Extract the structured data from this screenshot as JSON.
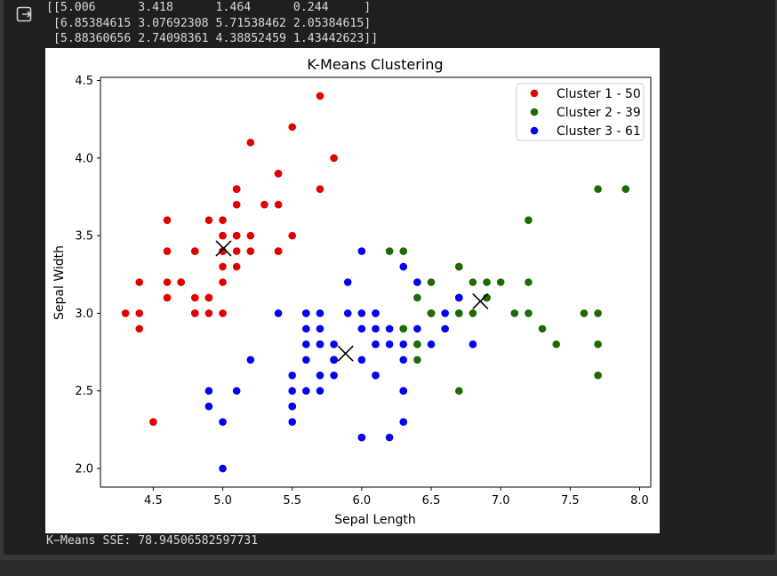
{
  "stdout": {
    "centers_lines": [
      "[[5.006      3.418      1.464      0.244     ]",
      " [6.85384615 3.07692308 5.71538462 2.05384615]",
      " [5.88360656 2.74098361 4.38852459 1.43442623]]"
    ],
    "sse_text": "K−Means SSE: 78.94506582597731"
  },
  "output_icon": "output-exit-icon",
  "colors": {
    "cluster1": "#e00000",
    "cluster2": "#1a6b00",
    "cluster3": "#0000f2",
    "centroid": "#000000"
  },
  "chart_data": {
    "type": "scatter",
    "title": "K-Means Clustering",
    "xlabel": "Sepal Length",
    "ylabel": "Sepal Width",
    "xlim": [
      4.12,
      8.08
    ],
    "ylim": [
      1.88,
      4.52
    ],
    "xticks": [
      "4.5",
      "5.0",
      "5.5",
      "6.0",
      "6.5",
      "7.0",
      "7.5",
      "8.0"
    ],
    "yticks": [
      "2.0",
      "2.5",
      "3.0",
      "3.5",
      "4.0",
      "4.5"
    ],
    "grid": false,
    "legend_position": "top-right",
    "series": [
      {
        "name": "Cluster 1 - 50",
        "color": "#e00000",
        "points": [
          [
            5.1,
            3.5
          ],
          [
            4.9,
            3.0
          ],
          [
            4.7,
            3.2
          ],
          [
            4.6,
            3.1
          ],
          [
            5.0,
            3.6
          ],
          [
            5.4,
            3.9
          ],
          [
            4.6,
            3.4
          ],
          [
            5.0,
            3.4
          ],
          [
            4.4,
            2.9
          ],
          [
            4.9,
            3.1
          ],
          [
            5.4,
            3.7
          ],
          [
            4.8,
            3.4
          ],
          [
            4.8,
            3.0
          ],
          [
            4.3,
            3.0
          ],
          [
            5.8,
            4.0
          ],
          [
            5.7,
            4.4
          ],
          [
            5.4,
            3.9
          ],
          [
            5.1,
            3.5
          ],
          [
            5.7,
            3.8
          ],
          [
            5.1,
            3.8
          ],
          [
            5.4,
            3.4
          ],
          [
            5.1,
            3.7
          ],
          [
            4.6,
            3.6
          ],
          [
            5.1,
            3.3
          ],
          [
            4.8,
            3.4
          ],
          [
            5.0,
            3.0
          ],
          [
            5.0,
            3.4
          ],
          [
            5.2,
            3.5
          ],
          [
            5.2,
            3.4
          ],
          [
            4.7,
            3.2
          ],
          [
            4.8,
            3.1
          ],
          [
            5.4,
            3.4
          ],
          [
            5.2,
            4.1
          ],
          [
            5.5,
            4.2
          ],
          [
            4.9,
            3.1
          ],
          [
            5.0,
            3.2
          ],
          [
            5.5,
            3.5
          ],
          [
            4.9,
            3.6
          ],
          [
            4.4,
            3.0
          ],
          [
            5.1,
            3.4
          ],
          [
            5.0,
            3.5
          ],
          [
            4.5,
            2.3
          ],
          [
            4.4,
            3.2
          ],
          [
            5.0,
            3.5
          ],
          [
            5.1,
            3.8
          ],
          [
            4.8,
            3.0
          ],
          [
            5.1,
            3.8
          ],
          [
            4.6,
            3.2
          ],
          [
            5.3,
            3.7
          ],
          [
            5.0,
            3.3
          ]
        ]
      },
      {
        "name": "Cluster 2 - 39",
        "color": "#1a6b00",
        "points": [
          [
            6.9,
            3.1
          ],
          [
            6.7,
            3.0
          ],
          [
            7.1,
            3.0
          ],
          [
            6.3,
            2.9
          ],
          [
            6.5,
            3.0
          ],
          [
            7.6,
            3.0
          ],
          [
            7.3,
            2.9
          ],
          [
            6.7,
            2.5
          ],
          [
            7.2,
            3.6
          ],
          [
            6.5,
            3.2
          ],
          [
            6.4,
            2.7
          ],
          [
            6.8,
            3.0
          ],
          [
            6.4,
            3.2
          ],
          [
            6.5,
            3.0
          ],
          [
            7.7,
            3.8
          ],
          [
            7.7,
            2.6
          ],
          [
            6.9,
            3.2
          ],
          [
            7.7,
            2.8
          ],
          [
            6.7,
            3.3
          ],
          [
            7.2,
            3.2
          ],
          [
            6.2,
            3.4
          ],
          [
            6.1,
            2.6
          ],
          [
            6.4,
            2.8
          ],
          [
            7.2,
            3.0
          ],
          [
            7.4,
            2.8
          ],
          [
            7.9,
            3.8
          ],
          [
            6.3,
            3.4
          ],
          [
            6.4,
            3.1
          ],
          [
            6.9,
            3.1
          ],
          [
            6.7,
            3.1
          ],
          [
            6.9,
            3.1
          ],
          [
            6.8,
            3.2
          ],
          [
            6.7,
            3.3
          ],
          [
            6.7,
            3.0
          ],
          [
            6.5,
            3.0
          ],
          [
            7.7,
            3.0
          ],
          [
            6.4,
            2.8
          ],
          [
            6.3,
            2.9
          ],
          [
            7.0,
            3.2
          ]
        ]
      },
      {
        "name": "Cluster 3 - 61",
        "color": "#0000f2",
        "points": [
          [
            6.4,
            3.2
          ],
          [
            5.5,
            2.3
          ],
          [
            6.5,
            2.8
          ],
          [
            5.7,
            2.8
          ],
          [
            6.3,
            3.3
          ],
          [
            4.9,
            2.4
          ],
          [
            6.6,
            2.9
          ],
          [
            5.2,
            2.7
          ],
          [
            5.0,
            2.0
          ],
          [
            5.9,
            3.0
          ],
          [
            6.0,
            2.2
          ],
          [
            6.1,
            2.9
          ],
          [
            5.6,
            2.9
          ],
          [
            5.6,
            3.0
          ],
          [
            5.8,
            2.7
          ],
          [
            6.2,
            2.2
          ],
          [
            5.6,
            2.5
          ],
          [
            5.9,
            3.2
          ],
          [
            6.1,
            2.8
          ],
          [
            6.3,
            2.5
          ],
          [
            6.1,
            2.8
          ],
          [
            6.4,
            2.9
          ],
          [
            6.6,
            3.0
          ],
          [
            6.0,
            2.9
          ],
          [
            5.7,
            2.6
          ],
          [
            5.5,
            2.4
          ],
          [
            5.5,
            2.4
          ],
          [
            5.8,
            2.7
          ],
          [
            6.0,
            2.7
          ],
          [
            5.4,
            3.0
          ],
          [
            6.0,
            3.4
          ],
          [
            6.7,
            3.1
          ],
          [
            6.3,
            2.3
          ],
          [
            5.6,
            3.0
          ],
          [
            5.5,
            2.5
          ],
          [
            5.5,
            2.6
          ],
          [
            6.1,
            3.0
          ],
          [
            5.8,
            2.6
          ],
          [
            5.0,
            2.3
          ],
          [
            5.6,
            2.7
          ],
          [
            5.7,
            3.0
          ],
          [
            5.7,
            2.9
          ],
          [
            6.2,
            2.9
          ],
          [
            5.1,
            2.5
          ],
          [
            5.7,
            2.8
          ],
          [
            5.8,
            2.7
          ],
          [
            4.9,
            2.5
          ],
          [
            5.7,
            2.5
          ],
          [
            5.8,
            2.8
          ],
          [
            6.0,
            2.2
          ],
          [
            5.6,
            2.8
          ],
          [
            6.3,
            2.7
          ],
          [
            6.2,
            2.8
          ],
          [
            6.1,
            3.0
          ],
          [
            6.3,
            2.8
          ],
          [
            6.1,
            2.6
          ],
          [
            6.3,
            2.5
          ],
          [
            6.0,
            3.0
          ],
          [
            5.8,
            2.7
          ],
          [
            6.8,
            2.8
          ],
          [
            6.7,
            3.1
          ]
        ]
      }
    ],
    "centroids": [
      [
        5.006,
        3.418
      ],
      [
        6.85384615,
        3.07692308
      ],
      [
        5.88360656,
        2.74098361
      ]
    ],
    "legend": [
      "Cluster 1 - 50",
      "Cluster 2 - 39",
      "Cluster 3 - 61"
    ]
  }
}
